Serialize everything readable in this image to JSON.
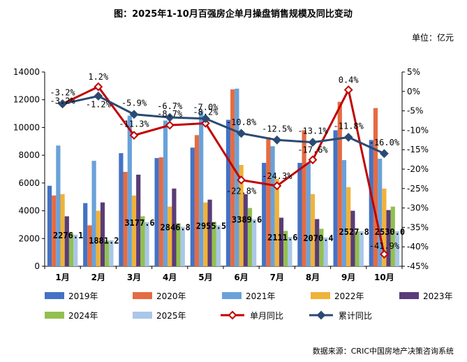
{
  "header": {
    "title": "图：2025年1-10月百强房企单月操盘销售规模及同比变动",
    "unit": "单位：亿元",
    "source": "数据来源：CRIC中国房地产决策咨询系统"
  },
  "colors": {
    "2019年": "#4472c4",
    "2020年": "#e46c42",
    "2021年": "#6aa1d9",
    "2022年": "#f0b239",
    "2023年": "#5a3c78",
    "2024年": "#92c050",
    "2025年": "#a9c7e8",
    "单月同比": "#c00000",
    "累计同比": "#2b4a73"
  },
  "chart_data": {
    "type": "bar",
    "title": "图：2025年1-10月百强房企单月操盘销售规模及同比变动",
    "categories": [
      "1月",
      "2月",
      "3月",
      "4月",
      "5月",
      "6月",
      "7月",
      "8月",
      "9月",
      "10月"
    ],
    "ylim": [
      0,
      14000
    ],
    "yticks": [
      "0",
      "2000",
      "4000",
      "6000",
      "8000",
      "10000",
      "12000",
      "14000"
    ],
    "y2lim": [
      -45,
      5
    ],
    "y2ticks": [
      "5%",
      "0%",
      "-5%",
      "-10%",
      "-15%",
      "-20%",
      "-25%",
      "-30%",
      "-35%",
      "-40%",
      "-45%"
    ],
    "series": [
      {
        "name": "2019年",
        "values": [
          5800,
          4550,
          8150,
          7800,
          8550,
          10550,
          7450,
          7450,
          9800,
          9100
        ]
      },
      {
        "name": "2020年",
        "values": [
          5100,
          2950,
          6800,
          7850,
          9450,
          12750,
          9300,
          9800,
          11850,
          11400
        ]
      },
      {
        "name": "2021年",
        "values": [
          8700,
          7600,
          10850,
          10500,
          11200,
          12800,
          8650,
          7450,
          7650,
          7750
        ]
      },
      {
        "name": "2022年",
        "values": [
          5200,
          4000,
          5100,
          4300,
          4600,
          7300,
          6300,
          5200,
          5700,
          5600
        ]
      },
      {
        "name": "2023年",
        "values": [
          3600,
          4600,
          6600,
          5600,
          4800,
          5200,
          3500,
          3400,
          4000,
          4050
        ]
      },
      {
        "name": "2024年",
        "values": [
          2400,
          1850,
          3600,
          3100,
          3200,
          4200,
          2550,
          2700,
          2500,
          4300
        ]
      },
      {
        "name": "2025年",
        "values": [
          2276.1,
          1881.2,
          3177.6,
          2846.8,
          2955.5,
          3389.6,
          2111.6,
          2070.4,
          2527.8,
          2530.0
        ]
      }
    ],
    "bar_labels": [
      "2276.1",
      "1881.2",
      "3177.6",
      "2846.8",
      "2955.5",
      "3389.6",
      "2111.6",
      "2070.4",
      "2527.8",
      "2530.0"
    ],
    "lines": [
      {
        "name": "单月同比",
        "axis": "right",
        "values": [
          -3.2,
          1.2,
          -11.3,
          -8.7,
          -8.2,
          -22.8,
          -24.3,
          -17.6,
          0.4,
          -41.9
        ],
        "labels": [
          "-3.2%",
          "1.2%",
          "-11.3%",
          "-8.7%",
          "-8.2%",
          "-22.8%",
          "-24.3%",
          "-17.6%",
          "0.4%",
          "-41.9%"
        ]
      },
      {
        "name": "累计同比",
        "axis": "right",
        "values": [
          -3.2,
          -1.2,
          -5.9,
          -6.7,
          -7.0,
          -10.8,
          -12.5,
          -13.1,
          -11.8,
          -16.0
        ],
        "labels": [
          "-3.2%",
          "-1.2%",
          "-5.9%",
          "-6.7%",
          "-7.0%",
          "-10.8%",
          "-12.5%",
          "-13.1%",
          "-11.8%",
          "-16.0%"
        ]
      }
    ],
    "legend": [
      "2019年",
      "2020年",
      "2021年",
      "2022年",
      "2023年",
      "2024年",
      "2025年",
      "单月同比",
      "累计同比"
    ]
  }
}
